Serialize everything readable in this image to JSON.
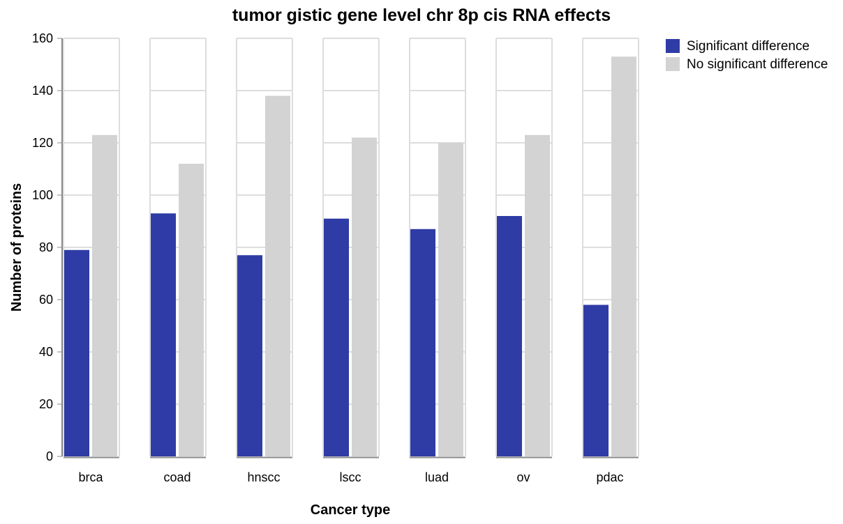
{
  "chart_data": {
    "type": "bar",
    "title": "tumor gistic gene level chr 8p cis RNA effects",
    "xlabel": "Cancer type",
    "ylabel": "Number of proteins",
    "ylim": [
      0,
      160
    ],
    "yticks": [
      0,
      20,
      40,
      60,
      80,
      100,
      120,
      140,
      160
    ],
    "categories": [
      "brca",
      "coad",
      "hnscc",
      "lscc",
      "luad",
      "ov",
      "pdac"
    ],
    "series": [
      {
        "name": "Significant difference",
        "color": "#2f3ca5",
        "values": [
          79,
          93,
          77,
          91,
          87,
          92,
          58
        ]
      },
      {
        "name": "No significant difference",
        "color": "#d3d3d3",
        "values": [
          123,
          112,
          138,
          122,
          120,
          123,
          153
        ]
      }
    ],
    "grid": true,
    "legend": "top-right"
  }
}
